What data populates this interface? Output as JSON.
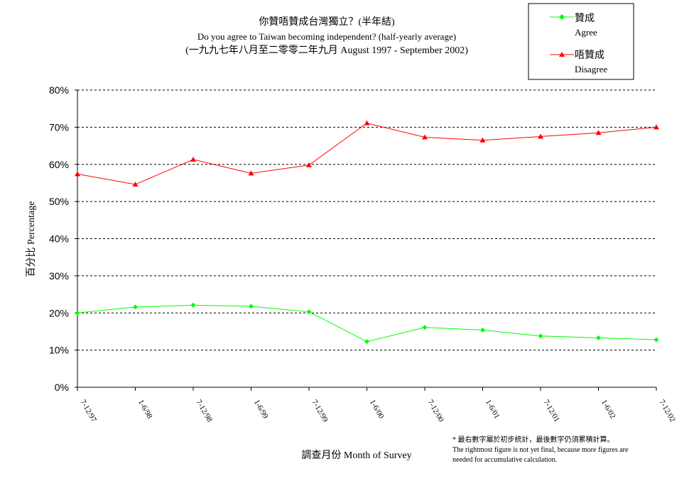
{
  "header": {
    "title_zh": "你贊唔贊成台灣獨立？(半年結)",
    "title_en": "Do you agree to Taiwan becoming independent? (half-yearly average)",
    "subtitle": "(一九九七年八月至二零零二年九月 August 1997 - September 2002)"
  },
  "footnote": {
    "zh": "* 最右數字屬於初步統計，最後數字仍須累積計算。",
    "en_line1": "The rightmost figure is not yet final, because more figures are",
    "en_line2": "needed for accumulative calculation."
  },
  "chart_data": {
    "type": "line",
    "title": "你贊唔贊成台灣獨立？(半年結)",
    "xlabel": "調查月份 Month of Survey",
    "ylabel": "百分比 Percentage",
    "ylim": [
      0,
      80
    ],
    "y_ticks": [
      "0%",
      "10%",
      "20%",
      "30%",
      "40%",
      "50%",
      "60%",
      "70%",
      "80%"
    ],
    "grid": "horizontal dashed",
    "legend_position": "top-right",
    "categories": [
      "7-12/97",
      "1-6/98",
      "7-12/98",
      "1-6/99",
      "7-12/99",
      "1-6/00",
      "7-12/00",
      "1-6/01",
      "7-12/01",
      "1-6/02",
      "7-12/02"
    ],
    "series": [
      {
        "name": "贊成",
        "name_en": "Agree",
        "color": "#00ff00",
        "marker": "diamond",
        "values": [
          20.0,
          21.6,
          22.1,
          21.8,
          20.3,
          12.3,
          16.1,
          15.4,
          13.8,
          13.3,
          12.8
        ]
      },
      {
        "name": "唔贊成",
        "name_en": "Disagree",
        "color": "#ff0000",
        "marker": "triangle",
        "values": [
          57.4,
          54.6,
          61.3,
          57.6,
          59.8,
          71.1,
          67.3,
          66.5,
          67.5,
          68.5,
          70.0
        ]
      }
    ]
  }
}
